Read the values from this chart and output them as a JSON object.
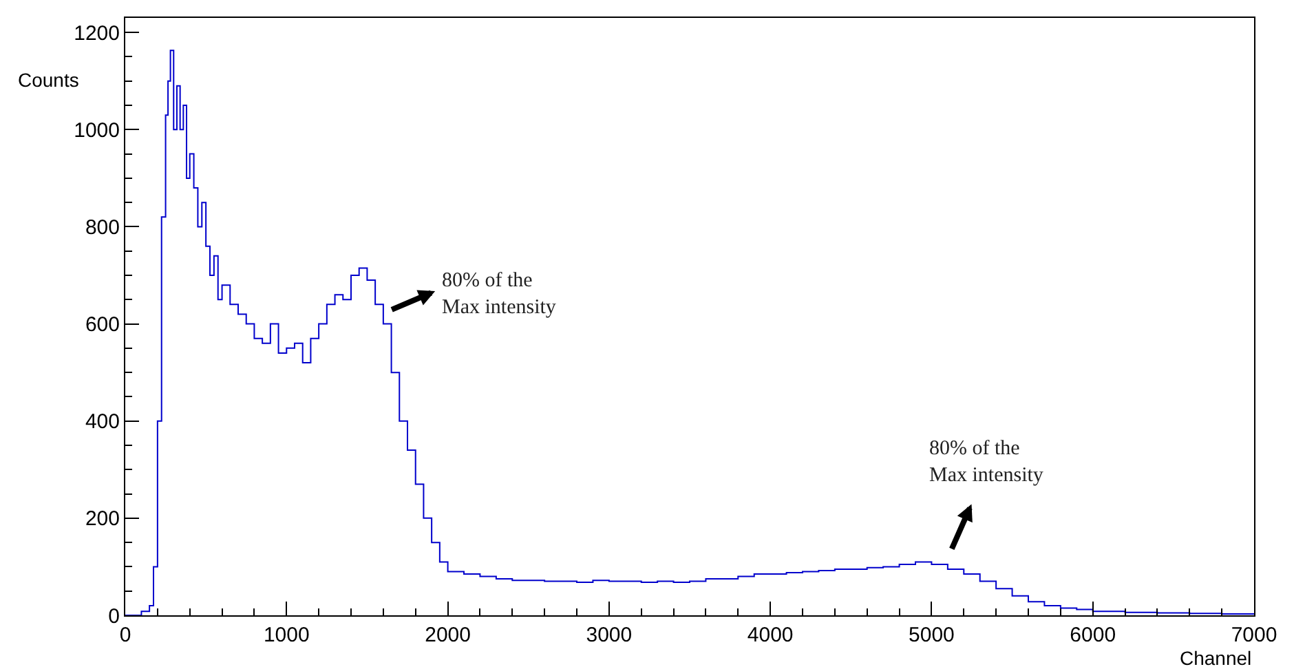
{
  "chart_data": {
    "type": "step",
    "xlabel": "Channel",
    "ylabel": "Counts",
    "xlim": [
      0,
      7000
    ],
    "ylim": [
      0,
      1230
    ],
    "xticks": [
      0,
      1000,
      2000,
      3000,
      4000,
      5000,
      6000,
      7000
    ],
    "yticks": [
      0,
      200,
      400,
      600,
      800,
      1000,
      1200
    ],
    "line_style": "solid",
    "marker": "none",
    "series": [
      {
        "color": "#0000cc",
        "x": [
          0,
          100,
          150,
          175,
          200,
          225,
          250,
          265,
          280,
          300,
          320,
          340,
          360,
          380,
          400,
          425,
          450,
          475,
          500,
          525,
          550,
          575,
          600,
          650,
          700,
          750,
          800,
          850,
          900,
          950,
          1000,
          1050,
          1100,
          1150,
          1200,
          1250,
          1300,
          1350,
          1400,
          1450,
          1500,
          1550,
          1600,
          1650,
          1700,
          1750,
          1800,
          1850,
          1900,
          1950,
          2000,
          2100,
          2200,
          2300,
          2400,
          2500,
          2600,
          2700,
          2800,
          2900,
          3000,
          3100,
          3200,
          3300,
          3400,
          3500,
          3600,
          3700,
          3800,
          3900,
          4000,
          4100,
          4200,
          4300,
          4400,
          4500,
          4600,
          4700,
          4800,
          4900,
          5000,
          5100,
          5200,
          5300,
          5400,
          5500,
          5600,
          5700,
          5800,
          5900,
          6000,
          6200,
          6400,
          6600,
          6800,
          7000
        ],
        "values": [
          0,
          8,
          20,
          100,
          400,
          820,
          1030,
          1100,
          1163,
          1000,
          1090,
          1000,
          1050,
          900,
          950,
          880,
          800,
          850,
          760,
          700,
          740,
          650,
          680,
          640,
          620,
          600,
          570,
          560,
          600,
          540,
          550,
          560,
          520,
          570,
          600,
          640,
          660,
          650,
          700,
          715,
          690,
          640,
          600,
          500,
          400,
          340,
          270,
          200,
          150,
          110,
          90,
          85,
          80,
          75,
          72,
          72,
          70,
          70,
          68,
          72,
          70,
          70,
          68,
          70,
          68,
          70,
          75,
          75,
          80,
          85,
          85,
          88,
          90,
          92,
          95,
          95,
          98,
          100,
          105,
          110,
          105,
          95,
          85,
          70,
          55,
          40,
          28,
          20,
          15,
          12,
          8,
          6,
          5,
          4,
          3,
          2
        ]
      }
    ],
    "annotations": [
      "80% of the\nMax intensity",
      "80% of the\nMax intensity"
    ]
  }
}
